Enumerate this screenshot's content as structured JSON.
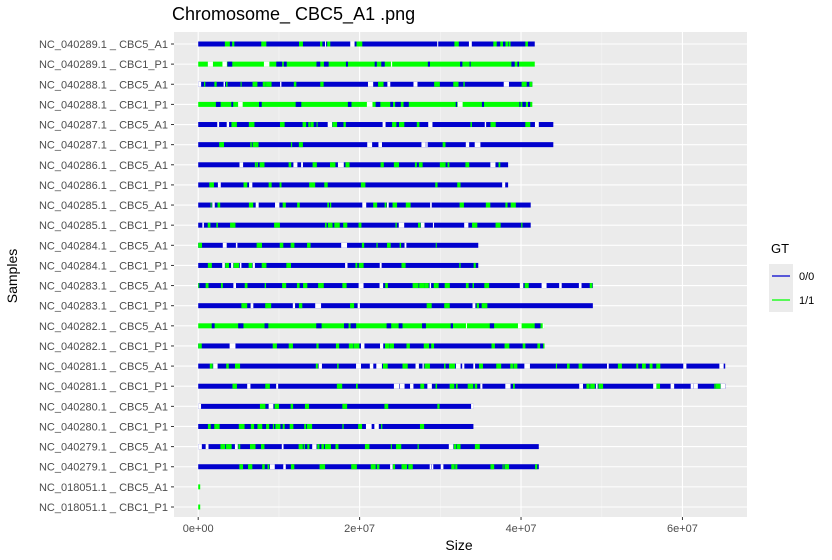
{
  "chart_data": {
    "type": "segment",
    "title": "Chromosome_ CBC5_A1 .png",
    "xlabel": "Size",
    "ylabel": "Samples",
    "xlim": [
      -3000000,
      68000000
    ],
    "x_ticks": [
      0,
      20000000,
      40000000,
      60000000
    ],
    "x_tick_labels": [
      "0e+00",
      "2e+07",
      "4e+07",
      "6e+07"
    ],
    "grid": true,
    "legend": {
      "title": "GT",
      "placement": "right",
      "entries": [
        {
          "label": "0/0",
          "color": "#0000cd"
        },
        {
          "label": "1/1",
          "color": "#00ff00"
        }
      ]
    },
    "samples": [
      {
        "name": "NC_040289.1 _ CBC5_A1",
        "start": 0,
        "end": 41700000,
        "dominant": "0/0"
      },
      {
        "name": "NC_040289.1 _ CBC1_P1",
        "start": 0,
        "end": 41700000,
        "dominant": "1/1"
      },
      {
        "name": "NC_040288.1 _ CBC5_A1",
        "start": 0,
        "end": 41400000,
        "dominant": "0/0"
      },
      {
        "name": "NC_040288.1 _ CBC1_P1",
        "start": 0,
        "end": 41400000,
        "dominant": "1/1"
      },
      {
        "name": "NC_040287.1 _ CBC5_A1",
        "start": 0,
        "end": 44000000,
        "dominant": "0/0"
      },
      {
        "name": "NC_040287.1 _ CBC1_P1",
        "start": 0,
        "end": 44000000,
        "dominant": "0/0"
      },
      {
        "name": "NC_040286.1 _ CBC5_A1",
        "start": 0,
        "end": 38400000,
        "dominant": "0/0"
      },
      {
        "name": "NC_040286.1 _ CBC1_P1",
        "start": 0,
        "end": 38400000,
        "dominant": "0/0"
      },
      {
        "name": "NC_040285.1 _ CBC5_A1",
        "start": 0,
        "end": 41200000,
        "dominant": "0/0"
      },
      {
        "name": "NC_040285.1 _ CBC1_P1",
        "start": 0,
        "end": 41200000,
        "dominant": "0/0"
      },
      {
        "name": "NC_040284.1 _ CBC5_A1",
        "start": 0,
        "end": 34700000,
        "dominant": "0/0"
      },
      {
        "name": "NC_040284.1 _ CBC1_P1",
        "start": 0,
        "end": 34700000,
        "dominant": "0/0"
      },
      {
        "name": "NC_040283.1 _ CBC5_A1",
        "start": 0,
        "end": 48900000,
        "dominant": "0/0"
      },
      {
        "name": "NC_040283.1 _ CBC1_P1",
        "start": 0,
        "end": 48900000,
        "dominant": "0/0"
      },
      {
        "name": "NC_040282.1 _ CBC5_A1",
        "start": 0,
        "end": 42900000,
        "dominant": "1/1"
      },
      {
        "name": "NC_040282.1 _ CBC1_P1",
        "start": 0,
        "end": 42900000,
        "dominant": "0/0"
      },
      {
        "name": "NC_040281.1 _ CBC5_A1",
        "start": 0,
        "end": 65300000,
        "dominant": "0/0"
      },
      {
        "name": "NC_040281.1 _ CBC1_P1",
        "start": 0,
        "end": 65300000,
        "dominant": "0/0"
      },
      {
        "name": "NC_040280.1 _ CBC5_A1",
        "start": 0,
        "end": 34100000,
        "dominant": "0/0"
      },
      {
        "name": "NC_040280.1 _ CBC1_P1",
        "start": 0,
        "end": 34100000,
        "dominant": "0/0"
      },
      {
        "name": "NC_040279.1 _ CBC5_A1",
        "start": 0,
        "end": 42200000,
        "dominant": "0/0"
      },
      {
        "name": "NC_040279.1 _ CBC1_P1",
        "start": 0,
        "end": 42200000,
        "dominant": "0/0"
      },
      {
        "name": "NC_018051.1 _ CBC5_A1",
        "start": 0,
        "end": 150000,
        "dominant": "1/1"
      },
      {
        "name": "NC_018051.1 _ CBC1_P1",
        "start": 0,
        "end": 150000,
        "dominant": "1/1"
      }
    ]
  }
}
